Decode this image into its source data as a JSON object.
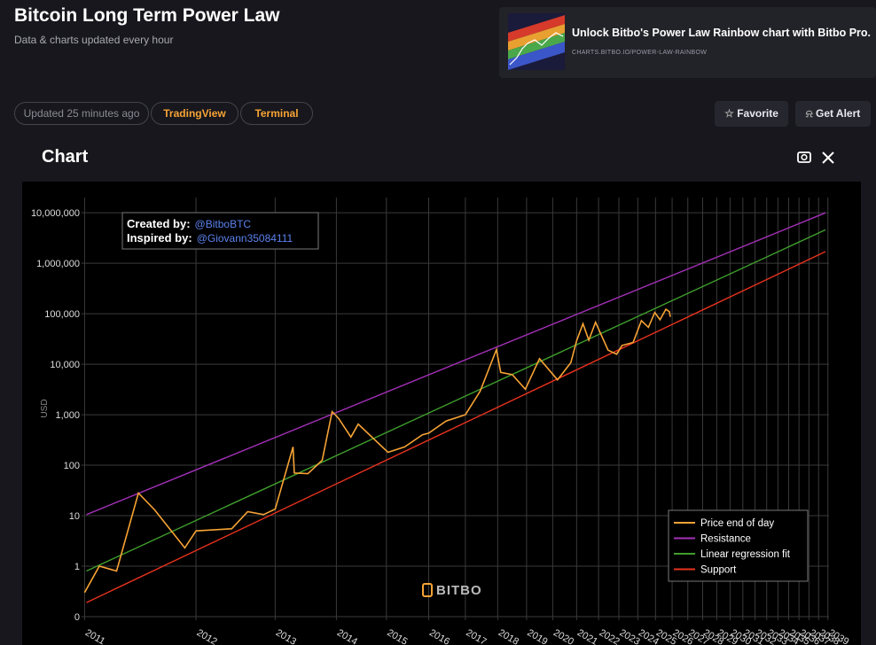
{
  "header": {
    "title": "Bitcoin Long Term Power Law",
    "subtitle": "Data & charts updated every hour"
  },
  "promo": {
    "text": "Unlock Bitbo's Power Law Rainbow chart with Bitbo Pro.",
    "url": "CHARTS.BITBO.IO/POWER-LAW-RAINBOW"
  },
  "toolbar": {
    "updated": "Updated 25 minutes ago",
    "links": [
      "TradingView",
      "Terminal"
    ],
    "actions": [
      "Favorite",
      "Get Alert"
    ]
  },
  "section_title": "Chart",
  "chart_data": {
    "type": "line",
    "y_label": "USD",
    "xscale": "log",
    "yscale": "log",
    "grid": true,
    "watermark": "BITBO",
    "annotations": [
      {
        "label": "Created by:",
        "text": "@BitboBTC"
      },
      {
        "label": "Inspired by:",
        "text": "@Giovann35084111"
      }
    ],
    "xlim": [
      720,
      11000
    ],
    "ylim": [
      0.085,
      20000000
    ],
    "xticks": [
      {
        "value": 728,
        "label": "2011"
      },
      {
        "value": 1093,
        "label": "2012"
      },
      {
        "value": 1459,
        "label": "2013"
      },
      {
        "value": 1824,
        "label": "2014"
      },
      {
        "value": 2189,
        "label": "2015"
      },
      {
        "value": 2554,
        "label": "2016"
      },
      {
        "value": 2920,
        "label": "2017"
      },
      {
        "value": 3285,
        "label": "2018"
      },
      {
        "value": 3650,
        "label": "2019"
      },
      {
        "value": 4015,
        "label": "2020"
      },
      {
        "value": 4381,
        "label": "2021"
      },
      {
        "value": 4746,
        "label": "2022"
      },
      {
        "value": 5111,
        "label": "2023"
      },
      {
        "value": 5476,
        "label": "2024"
      },
      {
        "value": 5842,
        "label": "2025"
      },
      {
        "value": 6207,
        "label": "2026"
      },
      {
        "value": 6572,
        "label": "2027"
      },
      {
        "value": 6937,
        "label": "2028"
      },
      {
        "value": 7303,
        "label": "2029"
      },
      {
        "value": 7668,
        "label": "2030"
      },
      {
        "value": 8033,
        "label": "2031"
      },
      {
        "value": 8398,
        "label": "2032"
      },
      {
        "value": 8764,
        "label": "2033"
      },
      {
        "value": 9129,
        "label": "2034"
      },
      {
        "value": 9494,
        "label": "2035"
      },
      {
        "value": 9859,
        "label": "2036"
      },
      {
        "value": 10225,
        "label": "2037"
      },
      {
        "value": 10590,
        "label": "2038"
      },
      {
        "value": 10955,
        "label": "2039"
      }
    ],
    "yticks": [
      {
        "value": 0.1,
        "label": "0"
      },
      1,
      10,
      100,
      {
        "value": 1000,
        "label": "1,000"
      },
      {
        "value": 10000,
        "label": "10,000"
      },
      {
        "value": 100000,
        "label": "100,000"
      },
      {
        "value": 1000000,
        "label": "1,000,000"
      },
      {
        "value": 10000000,
        "label": "10,000,000"
      }
    ],
    "series": [
      {
        "name": "Price end of day",
        "color": "#f7a335",
        "x": [
          728,
          768,
          818,
          886,
          940,
          1049,
          1093,
          1245,
          1320,
          1398,
          1459,
          1557,
          1564,
          1644,
          1732,
          1796,
          1838,
          1923,
          1975,
          2202,
          2340,
          2496,
          2554,
          2721,
          2920,
          3081,
          3270,
          3321,
          3465,
          3633,
          3826,
          4086,
          4289,
          4381,
          4484,
          4581,
          4694,
          4914,
          5070,
          5170,
          5384,
          5549,
          5693,
          5827,
          5939,
          6067,
          6146,
          6165
        ],
        "values": [
          0.3,
          1.0,
          0.8,
          28,
          13,
          2.3,
          5,
          5.5,
          12,
          10.5,
          13.5,
          230,
          70,
          68,
          125,
          1150,
          850,
          360,
          650,
          180,
          230,
          400,
          430,
          750,
          1000,
          2900,
          19500,
          6900,
          6200,
          3200,
          12900,
          4900,
          10700,
          29000,
          63500,
          30000,
          68000,
          19000,
          15800,
          23500,
          27000,
          73000,
          54000,
          106000,
          76000,
          123000,
          110000,
          87000
        ]
      },
      {
        "name": "Resistance",
        "color": "#a330b8",
        "x": [
          733,
          10860
        ],
        "values": [
          10.5,
          10000000
        ]
      },
      {
        "name": "Linear regression fit",
        "color": "#3f9e2c",
        "x": [
          733,
          10860
        ],
        "values": [
          0.8,
          4600000
        ]
      },
      {
        "name": "Support",
        "color": "#e8321e",
        "x": [
          733,
          10860
        ],
        "values": [
          0.19,
          1700000
        ]
      }
    ],
    "legend": "bottom-right"
  }
}
